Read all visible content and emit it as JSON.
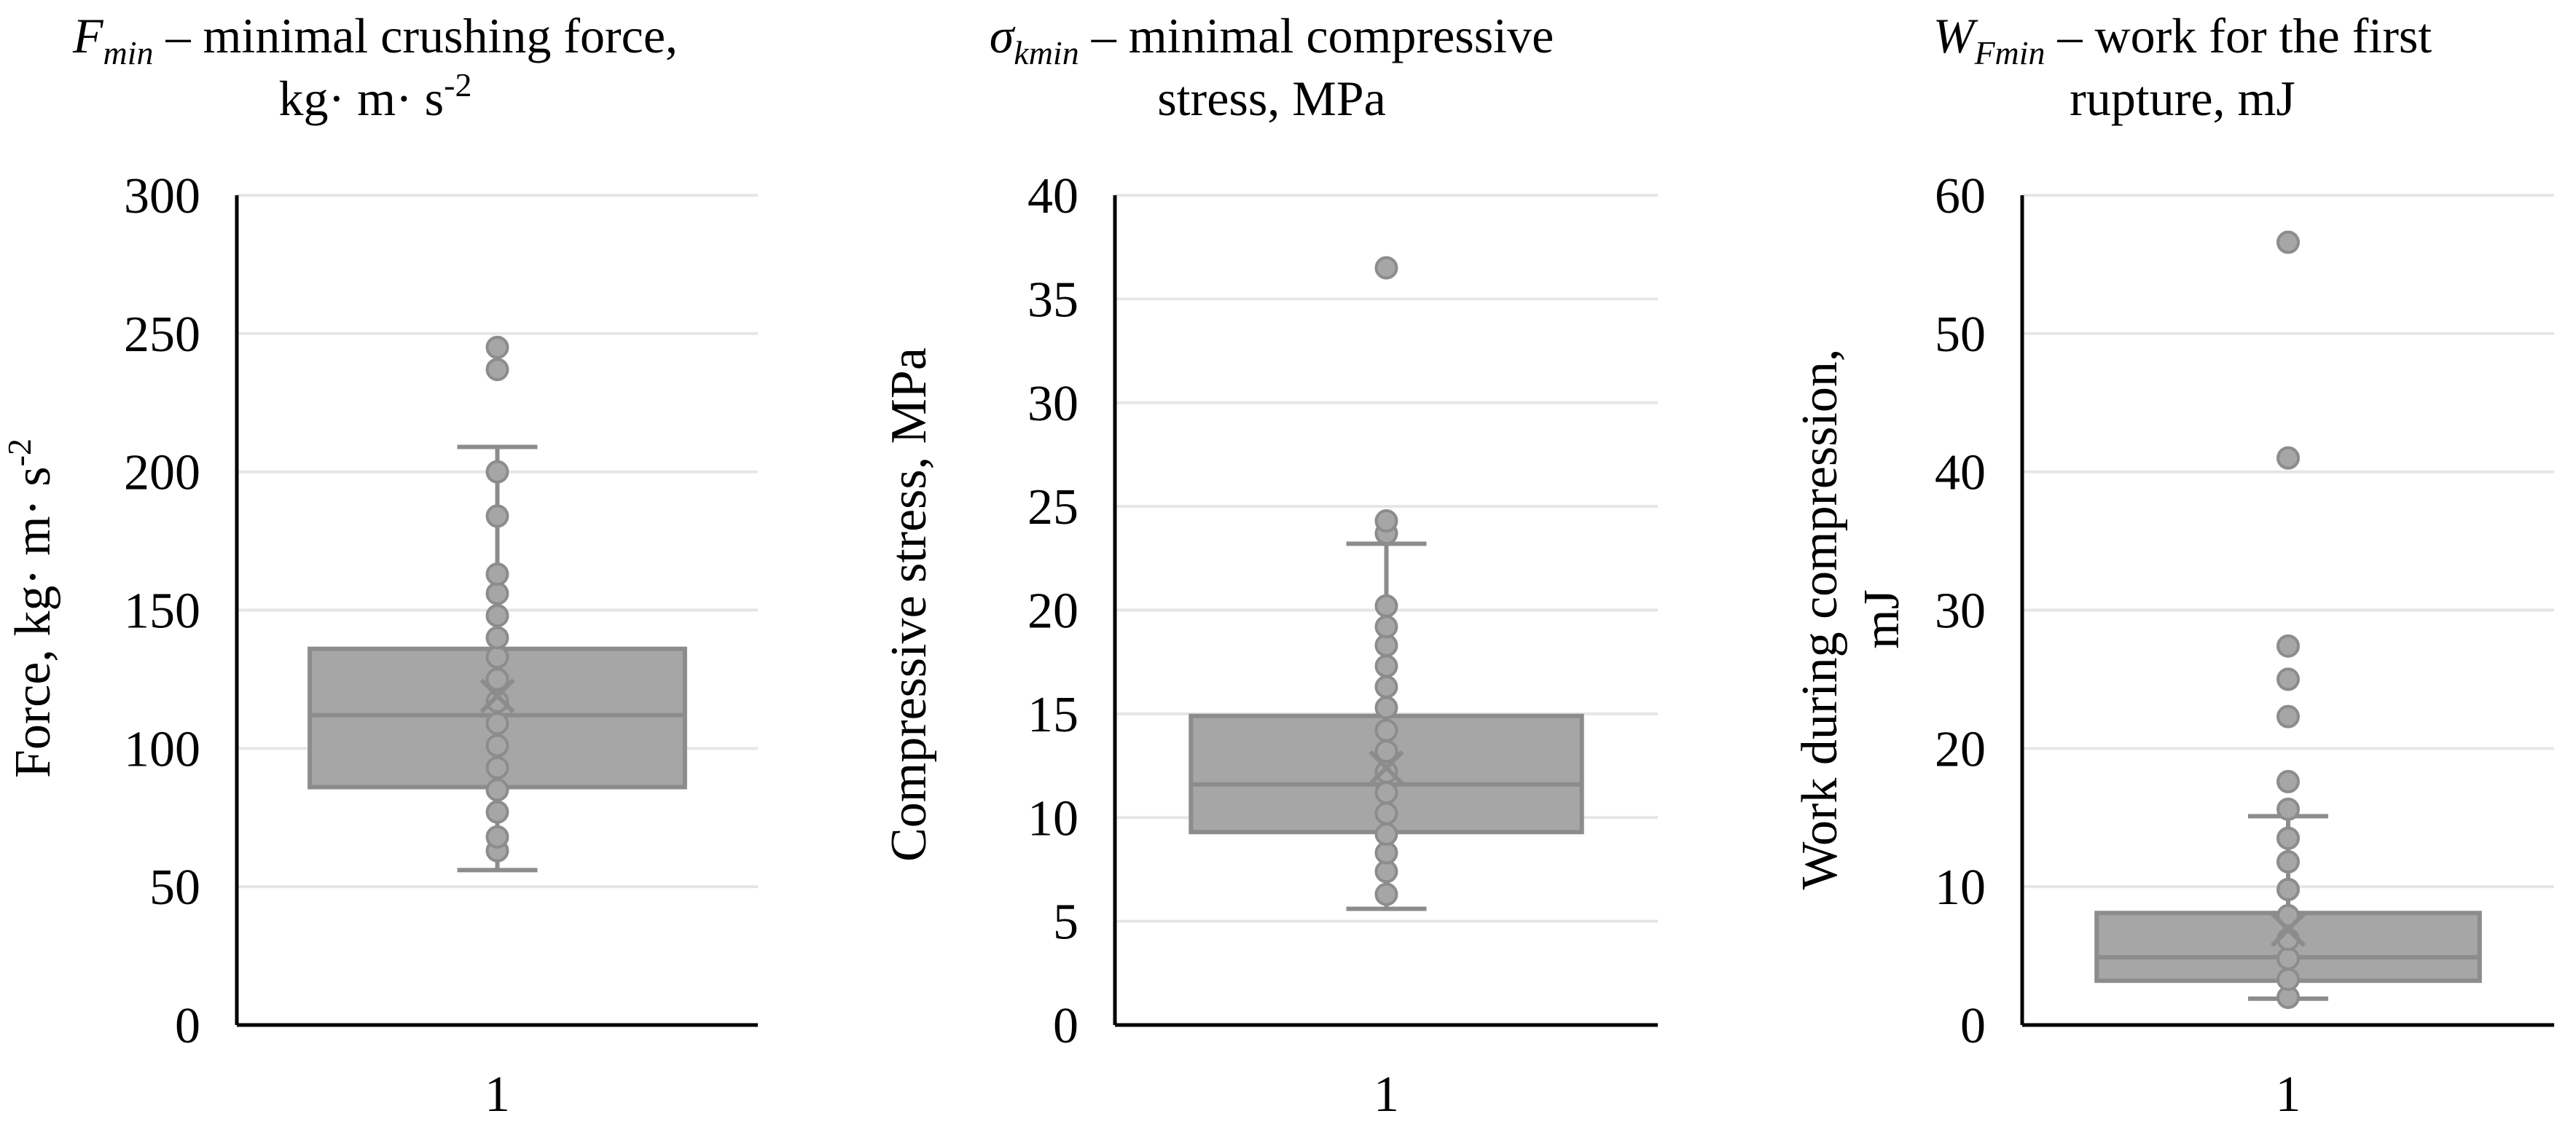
{
  "colors": {
    "box_fill": "#A6A6A6",
    "box_stroke": "#8C8C8C",
    "grid": "#E6E6E6",
    "axis": "#000000"
  },
  "chart_data": [
    {
      "type": "box",
      "title_symbol": "F",
      "title_subscript": "min",
      "title_rest": " – minimal crushing force,",
      "title_line2": "kg· m· s",
      "title_line2_sup": "-2",
      "ylabel": "Force, kg· m· s",
      "ylabel_sup": "-2",
      "ylabel_line2": "",
      "category": "1",
      "ylim": [
        0,
        300
      ],
      "ticks": [
        0,
        50,
        100,
        150,
        200,
        250,
        300
      ],
      "tick_labels": [
        "0",
        "50",
        "100",
        "150",
        "200",
        "250",
        "300"
      ],
      "whisker_low": 56,
      "q1": 86,
      "median": 112,
      "q3": 136,
      "whisker_high": 209,
      "mean": 119,
      "points": [
        63,
        68,
        77,
        85,
        93,
        101,
        109,
        117,
        125,
        133,
        140,
        148,
        156,
        163,
        184,
        200,
        237,
        245
      ],
      "outliers": [
        237,
        245
      ]
    },
    {
      "type": "box",
      "title_symbol": "σ",
      "title_subscript": "kmin",
      "title_rest": " – minimal compressive",
      "title_line2": "stress, MPa",
      "title_line2_sup": "",
      "ylabel": "Compressive stress, MPa",
      "ylabel_sup": "",
      "ylabel_line2": "",
      "category": "1",
      "ylim": [
        0,
        40
      ],
      "ticks": [
        0,
        5,
        10,
        15,
        20,
        25,
        30,
        35,
        40
      ],
      "tick_labels": [
        "0",
        "5",
        "10",
        "15",
        "20",
        "25",
        "30",
        "35",
        "40"
      ],
      "whisker_low": 5.6,
      "q1": 9.3,
      "median": 11.6,
      "q3": 14.9,
      "whisker_high": 23.2,
      "mean": 12.4,
      "points": [
        6.3,
        7.4,
        8.3,
        9.2,
        10.2,
        11.2,
        12.2,
        13.2,
        14.2,
        15.3,
        16.3,
        17.3,
        18.3,
        19.2,
        20.2,
        23.7,
        24.3,
        36.5
      ],
      "outliers": [
        24.3,
        36.5
      ]
    },
    {
      "type": "box",
      "title_symbol": "W",
      "title_subscript": "Fmin",
      "title_rest": " – work for the first",
      "title_line2": "rupture, mJ",
      "title_line2_sup": "",
      "ylabel": "Work during compression,",
      "ylabel_sup": "",
      "ylabel_line2": "mJ",
      "category": "1",
      "ylim": [
        0,
        60
      ],
      "ticks": [
        0,
        10,
        20,
        30,
        40,
        50,
        60
      ],
      "tick_labels": [
        "0",
        "10",
        "20",
        "30",
        "40",
        "50",
        "60"
      ],
      "whisker_low": 1.9,
      "q1": 3.2,
      "median": 4.9,
      "q3": 8.1,
      "whisker_high": 15.1,
      "mean": 6.9,
      "points": [
        2.0,
        3.3,
        4.8,
        6.2,
        7.9,
        9.8,
        11.8,
        13.5,
        15.6,
        17.6,
        22.3,
        25.0,
        27.4,
        41.0,
        56.6
      ],
      "outliers": [
        17.6,
        22.3,
        25.0,
        27.4,
        41.0,
        56.6
      ]
    }
  ]
}
